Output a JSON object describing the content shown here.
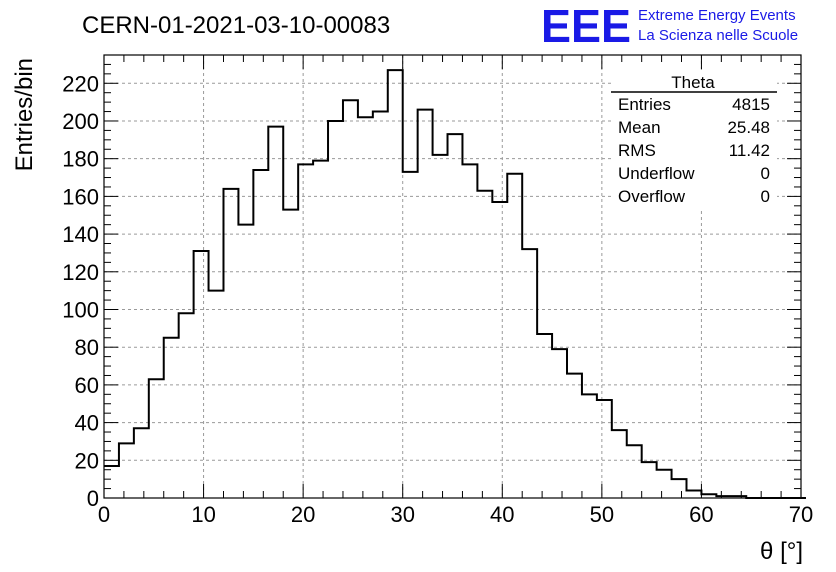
{
  "run_id": "CERN-01-2021-03-10-00083",
  "logo": {
    "mark": "EEE",
    "line1": "Extreme Energy Events",
    "line2": "La Scienza nelle Scuole",
    "color": "#1a1ae6"
  },
  "stats_box": {
    "title": "Theta",
    "rows": [
      {
        "label": "Entries",
        "value": "4815"
      },
      {
        "label": "Mean",
        "value": "25.48"
      },
      {
        "label": "RMS",
        "value": "11.42"
      },
      {
        "label": "Underflow",
        "value": "0"
      },
      {
        "label": "Overflow",
        "value": "0"
      }
    ]
  },
  "chart_data": {
    "type": "histogram",
    "title": "CERN-01-2021-03-10-00083",
    "xlabel": "θ [°]",
    "ylabel": "Entries/bin",
    "xlim": [
      0,
      70
    ],
    "ylim": [
      0,
      235
    ],
    "bin_width": 1.5,
    "bin_start": 0,
    "grid": true,
    "x_ticks": [
      0,
      10,
      20,
      30,
      40,
      50,
      60,
      70
    ],
    "y_ticks": [
      0,
      20,
      40,
      60,
      80,
      100,
      120,
      140,
      160,
      180,
      200,
      220
    ],
    "values": [
      17,
      29,
      37,
      63,
      85,
      98,
      131,
      110,
      164,
      145,
      174,
      197,
      153,
      177,
      179,
      200,
      211,
      202,
      205,
      227,
      173,
      206,
      182,
      193,
      177,
      163,
      157,
      172,
      132,
      87,
      79,
      66,
      55,
      52,
      36,
      28,
      19,
      15,
      10,
      4,
      2,
      1,
      1,
      0,
      0,
      0,
      0
    ],
    "line_color": "#000000"
  }
}
